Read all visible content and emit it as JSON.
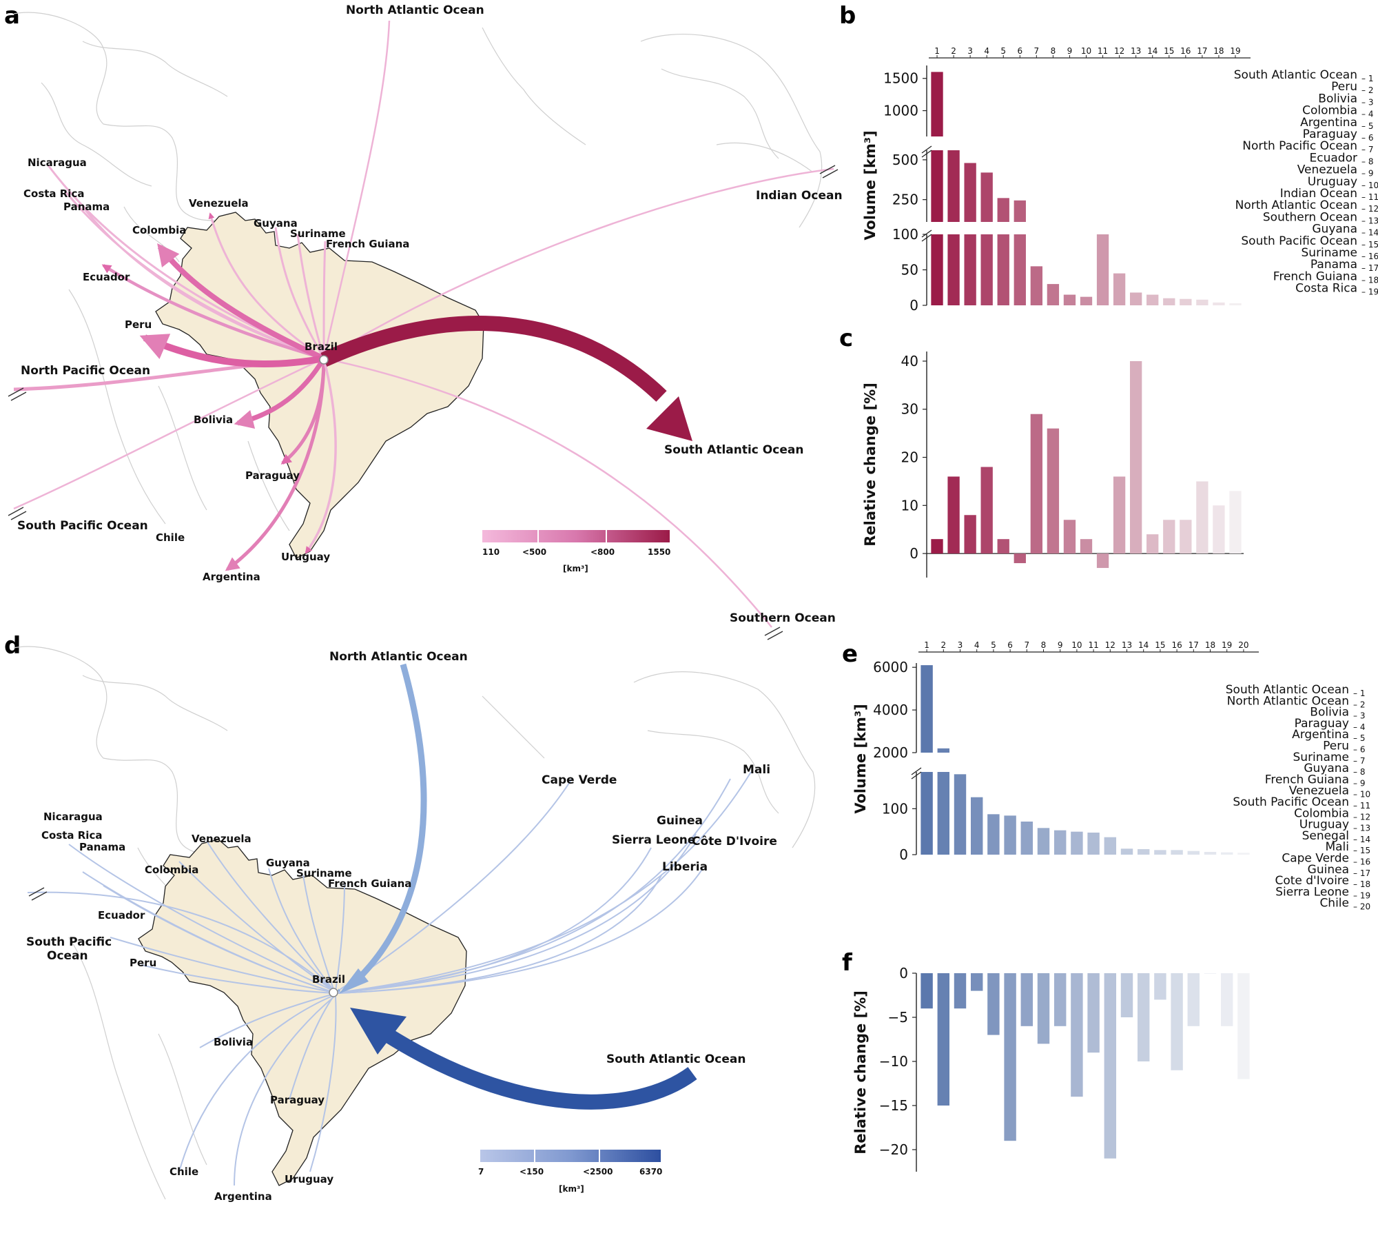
{
  "panels": {
    "a": "a",
    "b": "b",
    "c": "c",
    "d": "d",
    "e": "e",
    "f": "f"
  },
  "colors": {
    "export_light": "#f0b3d6",
    "export_mid": "#d75ca0",
    "export_dark": "#9b1b48",
    "import_light": "#b4c4e6",
    "import_mid": "#7f9bd1",
    "import_dark": "#2e54a2",
    "brazil_fill": "#f5ecd6"
  },
  "map_export": {
    "hub": "Brazil",
    "labels": {
      "north_atlantic": "North Atlantic Ocean",
      "indian": "Indian Ocean",
      "south_atlantic": "South Atlantic Ocean",
      "southern": "Southern Ocean",
      "north_pacific": "North Pacific Ocean",
      "south_pacific": "South Pacific Ocean",
      "nicaragua": "Nicaragua",
      "costa_rica": "Costa Rica",
      "panama": "Panama",
      "colombia": "Colombia",
      "venezuela": "Venezuela",
      "guyana": "Guyana",
      "suriname": "Suriname",
      "french_guiana": "French Guiana",
      "ecuador": "Ecuador",
      "peru": "Peru",
      "bolivia": "Bolivia",
      "paraguay": "Paraguay",
      "chile": "Chile",
      "argentina": "Argentina",
      "uruguay": "Uruguay",
      "brazil": "Brazil"
    },
    "colorbar": {
      "ticks": [
        "110",
        "<500",
        "<800",
        "1550"
      ],
      "unit": "[km³]"
    }
  },
  "map_import": {
    "hub": "Brazil",
    "labels": {
      "north_atlantic": "North Atlantic Ocean",
      "south_atlantic": "South Atlantic Ocean",
      "south_pacific_1": "South Pacific",
      "south_pacific_2": "Ocean",
      "cape_verde": "Cape Verde",
      "mali": "Mali",
      "guinea": "Guinea",
      "sierra_leone": "Sierra Leone",
      "cote_divoire": "Côte D'Ivoire",
      "liberia": "Liberia",
      "nicaragua": "Nicaragua",
      "costa_rica": "Costa Rica",
      "panama": "Panama",
      "venezuela": "Venezuela",
      "colombia": "Colombia",
      "guyana": "Guyana",
      "suriname": "Suriname",
      "french_guiana": "French Guiana",
      "ecuador": "Ecuador",
      "peru": "Peru",
      "bolivia": "Bolivia",
      "paraguay": "Paraguay",
      "chile": "Chile",
      "argentina": "Argentina",
      "uruguay": "Uruguay",
      "brazil": "Brazil"
    },
    "colorbar": {
      "ticks": [
        "7",
        "<150",
        "<2500",
        "6370"
      ],
      "unit": "[km³]"
    }
  },
  "chart_data": [
    {
      "id": "b",
      "type": "bar",
      "ylabel": "Volume [km³]",
      "broken_axis": true,
      "categories": [
        "1",
        "2",
        "3",
        "4",
        "5",
        "6",
        "7",
        "8",
        "9",
        "10",
        "11",
        "12",
        "13",
        "14",
        "15",
        "16",
        "17",
        "18",
        "19"
      ],
      "legend": [
        "South Atlantic Ocean",
        "Peru",
        "Bolivia",
        "Colombia",
        "Argentina",
        "Paraguay",
        "North Pacific Ocean",
        "Ecuador",
        "Venezuela",
        "Uruguay",
        "Indian Ocean",
        "North Atlantic Ocean",
        "Southern Ocean",
        "Guyana",
        "South Pacific Ocean",
        "Suriname",
        "Panama",
        "French Guiana",
        "Costa Rica"
      ],
      "values": [
        1600,
        560,
        480,
        420,
        260,
        245,
        55,
        30,
        15,
        12,
        100,
        45,
        18,
        15,
        10,
        9,
        8,
        4,
        3
      ],
      "segments": [
        {
          "ylim": [
            600,
            1700
          ],
          "ticks": [
            "1500",
            "1000"
          ],
          "tick_values": [
            1500,
            1000
          ]
        },
        {
          "ylim": [
            110,
            560
          ],
          "ticks": [
            "500",
            "250"
          ],
          "tick_values": [
            500,
            250
          ]
        },
        {
          "ylim": [
            0,
            100
          ],
          "ticks": [
            "100",
            "50",
            "0"
          ],
          "tick_values": [
            100,
            50,
            0
          ]
        }
      ]
    },
    {
      "id": "c",
      "type": "bar",
      "ylabel": "Relative change [%]",
      "ylim": [
        -5,
        42
      ],
      "yticks": [
        "0",
        "10",
        "20",
        "30",
        "40"
      ],
      "ytick_values": [
        0,
        10,
        20,
        30,
        40
      ],
      "values": [
        3,
        16,
        8,
        18,
        3,
        -2,
        29,
        26,
        7,
        3,
        -3,
        16,
        40,
        4,
        7,
        7,
        15,
        10,
        13
      ]
    },
    {
      "id": "e",
      "type": "bar",
      "ylabel": "Volume [km³]",
      "broken_axis": true,
      "categories": [
        "1",
        "2",
        "3",
        "4",
        "5",
        "6",
        "7",
        "8",
        "9",
        "10",
        "11",
        "12",
        "13",
        "14",
        "15",
        "16",
        "17",
        "18",
        "19",
        "20"
      ],
      "legend": [
        "South Atlantic Ocean",
        "North Atlantic Ocean",
        "Bolivia",
        "Paraguay",
        "Argentina",
        "Peru",
        "Suriname",
        "Guyana",
        "French Guiana",
        "Venezuela",
        "South Pacific Ocean",
        "Colombia",
        "Uruguay",
        "Senegal",
        "Mali",
        "Cape Verde",
        "Guinea",
        "Cote d'Ivoire",
        "Sierra Leone",
        "Chile"
      ],
      "values": [
        6100,
        2200,
        175,
        125,
        88,
        85,
        72,
        58,
        53,
        50,
        48,
        38,
        13,
        12,
        10,
        10,
        8,
        6,
        5,
        4
      ],
      "segments": [
        {
          "ylim": [
            2000,
            6200
          ],
          "ticks": [
            "6000",
            "4000",
            "2000"
          ],
          "tick_values": [
            6000,
            4000,
            2000
          ]
        },
        {
          "ylim": [
            0,
            180
          ],
          "ticks": [
            "100",
            "0"
          ],
          "tick_values": [
            100,
            0
          ]
        }
      ]
    },
    {
      "id": "f",
      "type": "bar",
      "ylabel": "Relative change [%]",
      "ylim": [
        -22.5,
        0
      ],
      "yticks": [
        "0",
        "−5",
        "−10",
        "−15",
        "−20"
      ],
      "ytick_values": [
        0,
        -5,
        -10,
        -15,
        -20
      ],
      "values": [
        -4,
        -15,
        -4,
        -2,
        -7,
        -19,
        -6,
        -8,
        -6,
        -14,
        -9,
        -21,
        -5,
        -10,
        -3,
        -11,
        -6,
        0,
        -6,
        -12
      ]
    }
  ]
}
